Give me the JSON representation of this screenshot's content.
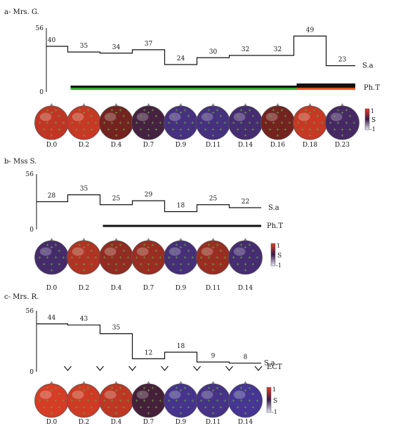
{
  "chart_data": [
    {
      "type": "line",
      "panel_label": "a- Mrs. G.",
      "ylim": [
        0,
        56
      ],
      "y_ticks": [
        "56",
        "0"
      ],
      "days": [
        "D.0",
        "D.2",
        "D.4",
        "D.7",
        "D.9",
        "D.11",
        "D.14",
        "D.16",
        "D.18",
        "D.23"
      ],
      "sa_values": [
        40,
        35,
        34,
        37,
        24,
        30,
        32,
        32,
        49,
        23
      ],
      "sa_label": "S.a",
      "treatment_label": "Ph.T",
      "treatment_start_index": 1,
      "treatment_change_index": 8,
      "treatment_colors_before": [
        "#111111",
        "#2eaa2e"
      ],
      "treatment_colors_after": [
        "#111111",
        "#111111",
        "#e8501e"
      ],
      "map_values": [
        0.8,
        0.85,
        0.3,
        -0.25,
        -0.7,
        -0.7,
        -0.6,
        0.3,
        0.85,
        -0.5
      ],
      "scale_ticks": [
        "1",
        "S",
        "-1"
      ]
    },
    {
      "type": "line",
      "panel_label": "b- Mss S.",
      "ylim": [
        0,
        56
      ],
      "y_ticks": [
        "56",
        "0"
      ],
      "days": [
        "D.0",
        "D.2",
        "D.4",
        "D.7",
        "D.9",
        "D.11",
        "D.14"
      ],
      "sa_values": [
        28,
        35,
        25,
        29,
        18,
        25,
        22
      ],
      "sa_label": "S.a",
      "treatment_label": "Ph.T",
      "treatment_start_index": 2,
      "map_values": [
        -0.55,
        0.7,
        0.5,
        0.55,
        -0.65,
        0.55,
        -0.6
      ],
      "scale_ticks": [
        "1",
        "S",
        "-1"
      ]
    },
    {
      "type": "line",
      "panel_label": "c- Mrs. R.",
      "ylim": [
        0,
        56
      ],
      "y_ticks": [
        "56",
        "0"
      ],
      "days": [
        "D.0",
        "D.2",
        "D.4",
        "D.7",
        "D.9",
        "D.11",
        "D.14"
      ],
      "sa_values": [
        44,
        43,
        35,
        12,
        18,
        9,
        8
      ],
      "sa_label": "S.a",
      "ect_label": "ECT",
      "map_values": [
        0.95,
        0.9,
        0.8,
        -0.2,
        -0.8,
        -0.75,
        -0.85
      ],
      "scale_ticks": [
        "1",
        "S",
        "-1"
      ]
    }
  ]
}
